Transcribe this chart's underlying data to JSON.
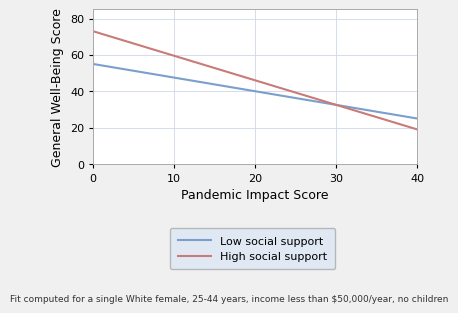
{
  "title": "",
  "xlabel": "Pandemic Impact Score",
  "ylabel": "General Well-Being Score",
  "xlim": [
    0,
    40
  ],
  "ylim": [
    0,
    85
  ],
  "xticks": [
    0,
    10,
    20,
    30,
    40
  ],
  "yticks": [
    0,
    20,
    40,
    60,
    80
  ],
  "low_support": {
    "x": [
      0,
      40
    ],
    "y": [
      55,
      25
    ],
    "color": "#7b9fcc",
    "label": "Low social support",
    "linewidth": 1.5
  },
  "high_support": {
    "x": [
      0,
      40
    ],
    "y": [
      73,
      19
    ],
    "color": "#c97b78",
    "label": "High social support",
    "linewidth": 1.5
  },
  "footnote": "Fit computed for a single White female, 25-44 years, income less than $50,000/year, no children",
  "background_color": "#f0f0f0",
  "plot_bg_color": "#ffffff",
  "legend_box_color": "#dce8f5",
  "grid_color": "#d0d8e8",
  "font_size_axis_label": 9,
  "font_size_tick": 8,
  "font_size_legend": 8,
  "font_size_footnote": 6.5
}
